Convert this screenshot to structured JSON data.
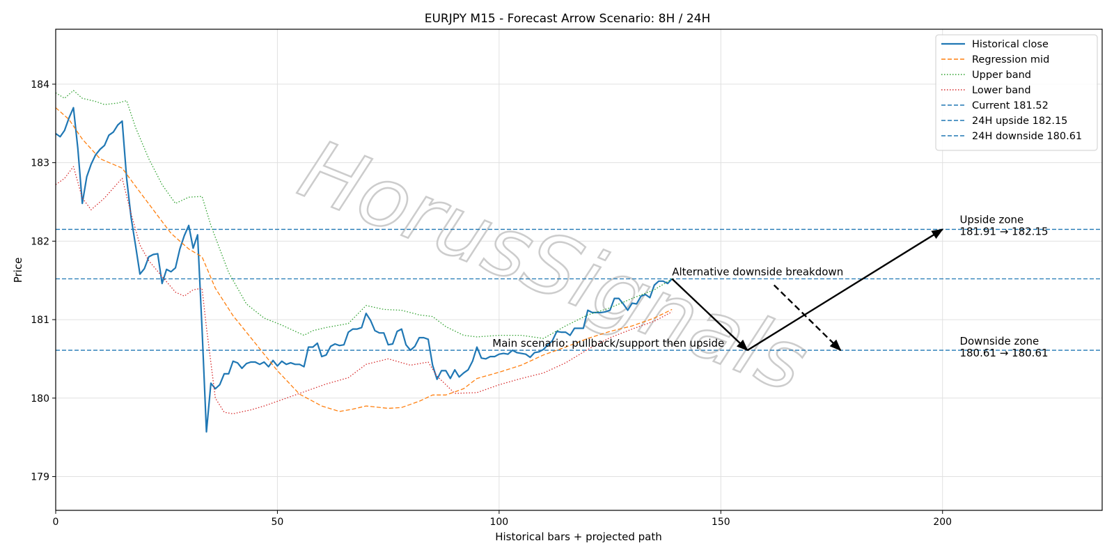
{
  "chart_data": {
    "type": "line",
    "title": "EURJPY M15 - Forecast Arrow Scenario: 8H / 24H",
    "xlabel": "Historical bars + projected path",
    "ylabel": "Price",
    "xlim": [
      0,
      236
    ],
    "ylim": [
      178.57,
      184.7
    ],
    "xticks": [
      0,
      50,
      100,
      150,
      200
    ],
    "yticks": [
      179,
      180,
      181,
      182,
      183,
      184
    ],
    "grid": true,
    "legend_position": "top-right",
    "watermark": "HorusSignals",
    "series": [
      {
        "name": "Historical close",
        "color": "#1f77b4",
        "style": "solid",
        "points": [
          [
            0,
            183.37
          ],
          [
            1,
            183.33
          ],
          [
            2,
            183.41
          ],
          [
            3,
            183.57
          ],
          [
            4,
            183.7
          ],
          [
            5,
            183.18
          ],
          [
            6,
            182.48
          ],
          [
            7,
            182.82
          ],
          [
            8,
            182.98
          ],
          [
            9,
            183.1
          ],
          [
            10,
            183.17
          ],
          [
            11,
            183.22
          ],
          [
            12,
            183.35
          ],
          [
            13,
            183.39
          ],
          [
            14,
            183.48
          ],
          [
            15,
            183.53
          ],
          [
            16,
            182.8
          ],
          [
            17,
            182.3
          ],
          [
            18,
            181.95
          ],
          [
            19,
            181.58
          ],
          [
            20,
            181.65
          ],
          [
            21,
            181.8
          ],
          [
            22,
            181.83
          ],
          [
            23,
            181.84
          ],
          [
            24,
            181.46
          ],
          [
            25,
            181.64
          ],
          [
            26,
            181.61
          ],
          [
            27,
            181.66
          ],
          [
            28,
            181.9
          ],
          [
            29,
            182.07
          ],
          [
            30,
            182.2
          ],
          [
            31,
            181.91
          ],
          [
            32,
            182.08
          ],
          [
            33,
            180.88
          ],
          [
            34,
            179.57
          ],
          [
            35,
            180.19
          ],
          [
            36,
            180.12
          ],
          [
            37,
            180.17
          ],
          [
            38,
            180.31
          ],
          [
            39,
            180.31
          ],
          [
            40,
            180.47
          ],
          [
            41,
            180.45
          ],
          [
            42,
            180.38
          ],
          [
            43,
            180.44
          ],
          [
            44,
            180.46
          ],
          [
            45,
            180.46
          ],
          [
            46,
            180.43
          ],
          [
            47,
            180.46
          ],
          [
            48,
            180.4
          ],
          [
            49,
            180.48
          ],
          [
            50,
            180.41
          ],
          [
            51,
            180.47
          ],
          [
            52,
            180.43
          ],
          [
            53,
            180.45
          ],
          [
            54,
            180.43
          ],
          [
            55,
            180.43
          ],
          [
            56,
            180.4
          ],
          [
            57,
            180.65
          ],
          [
            58,
            180.65
          ],
          [
            59,
            180.7
          ],
          [
            60,
            180.53
          ],
          [
            61,
            180.55
          ],
          [
            62,
            180.66
          ],
          [
            63,
            180.69
          ],
          [
            64,
            180.67
          ],
          [
            65,
            180.68
          ],
          [
            66,
            180.84
          ],
          [
            67,
            180.88
          ],
          [
            68,
            180.88
          ],
          [
            69,
            180.9
          ],
          [
            70,
            181.08
          ],
          [
            71,
            180.99
          ],
          [
            72,
            180.86
          ],
          [
            73,
            180.83
          ],
          [
            74,
            180.83
          ],
          [
            75,
            180.68
          ],
          [
            76,
            180.69
          ],
          [
            77,
            180.85
          ],
          [
            78,
            180.88
          ],
          [
            79,
            180.68
          ],
          [
            80,
            180.61
          ],
          [
            81,
            180.66
          ],
          [
            82,
            180.77
          ],
          [
            83,
            180.77
          ],
          [
            84,
            180.75
          ],
          [
            85,
            180.42
          ],
          [
            86,
            180.24
          ],
          [
            87,
            180.35
          ],
          [
            88,
            180.35
          ],
          [
            89,
            180.25
          ],
          [
            90,
            180.36
          ],
          [
            91,
            180.27
          ],
          [
            92,
            180.32
          ],
          [
            93,
            180.36
          ],
          [
            94,
            180.47
          ],
          [
            95,
            180.65
          ],
          [
            96,
            180.51
          ],
          [
            97,
            180.5
          ],
          [
            98,
            180.53
          ],
          [
            99,
            180.53
          ],
          [
            100,
            180.56
          ],
          [
            101,
            180.57
          ],
          [
            102,
            180.56
          ],
          [
            103,
            180.61
          ],
          [
            104,
            180.58
          ],
          [
            105,
            180.57
          ],
          [
            106,
            180.56
          ],
          [
            107,
            180.52
          ],
          [
            108,
            180.58
          ],
          [
            109,
            180.59
          ],
          [
            110,
            180.62
          ],
          [
            111,
            180.68
          ],
          [
            112,
            180.73
          ],
          [
            113,
            180.85
          ],
          [
            114,
            180.84
          ],
          [
            115,
            180.84
          ],
          [
            116,
            180.8
          ],
          [
            117,
            180.89
          ],
          [
            118,
            180.89
          ],
          [
            119,
            180.89
          ],
          [
            120,
            181.12
          ],
          [
            121,
            181.09
          ],
          [
            122,
            181.09
          ],
          [
            123,
            181.09
          ],
          [
            124,
            181.1
          ],
          [
            125,
            181.12
          ],
          [
            126,
            181.27
          ],
          [
            127,
            181.27
          ],
          [
            128,
            181.2
          ],
          [
            129,
            181.12
          ],
          [
            130,
            181.21
          ],
          [
            131,
            181.2
          ],
          [
            132,
            181.3
          ],
          [
            133,
            181.32
          ],
          [
            134,
            181.28
          ],
          [
            135,
            181.44
          ],
          [
            136,
            181.49
          ],
          [
            137,
            181.49
          ],
          [
            138,
            181.46
          ],
          [
            139,
            181.52
          ]
        ]
      },
      {
        "name": "Regression mid",
        "color": "#ff7f0e",
        "style": "dashed",
        "points": [
          [
            0,
            183.7
          ],
          [
            3,
            183.55
          ],
          [
            6,
            183.3
          ],
          [
            10,
            183.05
          ],
          [
            15,
            182.93
          ],
          [
            18,
            182.7
          ],
          [
            22,
            182.4
          ],
          [
            26,
            182.1
          ],
          [
            30,
            181.9
          ],
          [
            33,
            181.8
          ],
          [
            36,
            181.4
          ],
          [
            40,
            181.05
          ],
          [
            45,
            180.7
          ],
          [
            50,
            180.35
          ],
          [
            55,
            180.05
          ],
          [
            60,
            179.9
          ],
          [
            64,
            179.83
          ],
          [
            67,
            179.86
          ],
          [
            70,
            179.9
          ],
          [
            75,
            179.87
          ],
          [
            78,
            179.88
          ],
          [
            82,
            179.96
          ],
          [
            85,
            180.04
          ],
          [
            88,
            180.04
          ],
          [
            92,
            180.12
          ],
          [
            95,
            180.25
          ],
          [
            100,
            180.33
          ],
          [
            105,
            180.42
          ],
          [
            110,
            180.55
          ],
          [
            115,
            180.65
          ],
          [
            120,
            180.76
          ],
          [
            125,
            180.85
          ],
          [
            130,
            180.92
          ],
          [
            135,
            181.02
          ],
          [
            139,
            181.13
          ]
        ]
      },
      {
        "name": "Upper band",
        "color": "#2ca02c",
        "style": "dotted",
        "points": [
          [
            0,
            183.89
          ],
          [
            2,
            183.82
          ],
          [
            4,
            183.92
          ],
          [
            6,
            183.82
          ],
          [
            9,
            183.78
          ],
          [
            11,
            183.74
          ],
          [
            14,
            183.76
          ],
          [
            16,
            183.79
          ],
          [
            18,
            183.45
          ],
          [
            21,
            183.05
          ],
          [
            24,
            182.72
          ],
          [
            27,
            182.48
          ],
          [
            30,
            182.56
          ],
          [
            33,
            182.57
          ],
          [
            35,
            182.2
          ],
          [
            37,
            181.9
          ],
          [
            39,
            181.6
          ],
          [
            43,
            181.2
          ],
          [
            47,
            181.02
          ],
          [
            51,
            180.93
          ],
          [
            56,
            180.8
          ],
          [
            58,
            180.86
          ],
          [
            61,
            180.9
          ],
          [
            66,
            180.95
          ],
          [
            70,
            181.18
          ],
          [
            74,
            181.13
          ],
          [
            78,
            181.12
          ],
          [
            82,
            181.06
          ],
          [
            85,
            181.04
          ],
          [
            88,
            180.91
          ],
          [
            92,
            180.8
          ],
          [
            95,
            180.78
          ],
          [
            100,
            180.8
          ],
          [
            105,
            180.8
          ],
          [
            110,
            180.76
          ],
          [
            115,
            180.92
          ],
          [
            120,
            181.06
          ],
          [
            125,
            181.15
          ],
          [
            130,
            181.27
          ],
          [
            135,
            181.38
          ],
          [
            139,
            181.52
          ]
        ]
      },
      {
        "name": "Lower band",
        "color": "#d62728",
        "style": "dotted",
        "points": [
          [
            0,
            182.72
          ],
          [
            2,
            182.8
          ],
          [
            4,
            182.95
          ],
          [
            6,
            182.55
          ],
          [
            8,
            182.4
          ],
          [
            11,
            182.55
          ],
          [
            14,
            182.74
          ],
          [
            15,
            182.8
          ],
          [
            17,
            182.35
          ],
          [
            19,
            181.95
          ],
          [
            21,
            181.75
          ],
          [
            24,
            181.55
          ],
          [
            27,
            181.35
          ],
          [
            29,
            181.3
          ],
          [
            31,
            181.38
          ],
          [
            33,
            181.4
          ],
          [
            34,
            180.9
          ],
          [
            36,
            180.0
          ],
          [
            38,
            179.82
          ],
          [
            40,
            179.8
          ],
          [
            44,
            179.85
          ],
          [
            47,
            179.9
          ],
          [
            51,
            179.98
          ],
          [
            56,
            180.08
          ],
          [
            61,
            180.18
          ],
          [
            66,
            180.26
          ],
          [
            70,
            180.43
          ],
          [
            75,
            180.5
          ],
          [
            80,
            180.42
          ],
          [
            84,
            180.46
          ],
          [
            86,
            180.28
          ],
          [
            90,
            180.06
          ],
          [
            95,
            180.07
          ],
          [
            100,
            180.17
          ],
          [
            105,
            180.25
          ],
          [
            110,
            180.32
          ],
          [
            115,
            180.45
          ],
          [
            120,
            180.62
          ],
          [
            125,
            180.77
          ],
          [
            130,
            180.88
          ],
          [
            135,
            180.98
          ],
          [
            139,
            181.1
          ]
        ]
      }
    ],
    "hlines": [
      {
        "name": "Current 181.52",
        "value": 181.52,
        "color": "#1f77b4"
      },
      {
        "name": "24H upside 182.15",
        "value": 182.15,
        "color": "#1f77b4"
      },
      {
        "name": "24H downside 180.61",
        "value": 180.61,
        "color": "#1f77b4"
      }
    ],
    "arrows": [
      {
        "from": [
          139,
          181.52
        ],
        "to": [
          156,
          180.61
        ],
        "style": "solid"
      },
      {
        "from": [
          156,
          180.61
        ],
        "to": [
          200,
          182.15
        ],
        "style": "solid"
      },
      {
        "from": [
          162,
          181.44
        ],
        "to": [
          177,
          180.61
        ],
        "style": "dashed"
      }
    ],
    "annotations": [
      {
        "text": "Alternative downside breakdown",
        "x": 139,
        "y": 181.52
      },
      {
        "text": "Main scenario: pullback/support then upside",
        "x": 98.5,
        "y": 180.61
      },
      {
        "text": "Upside zone",
        "x": 202,
        "y": 182.15
      },
      {
        "text": "181.91 → 182.15",
        "x": 202,
        "y": 182.15
      },
      {
        "text": "Downside zone",
        "x": 202,
        "y": 180.61
      },
      {
        "text": "180.61 → 180.61",
        "x": 202,
        "y": 180.61
      }
    ]
  }
}
